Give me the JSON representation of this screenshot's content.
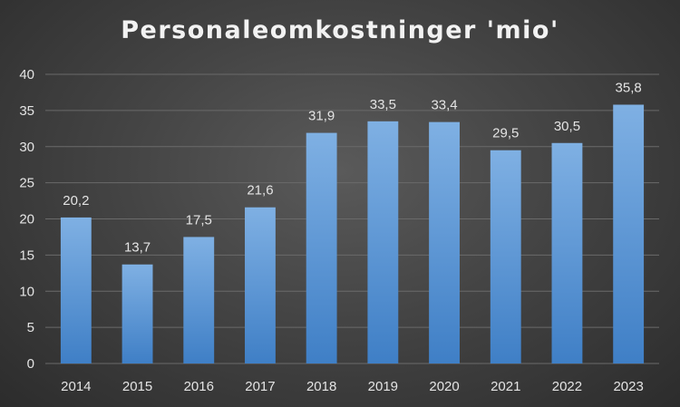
{
  "chart_data": {
    "type": "bar",
    "title": "Personaleomkostninger 'mio'",
    "categories": [
      "2014",
      "2015",
      "2016",
      "2017",
      "2018",
      "2019",
      "2020",
      "2021",
      "2022",
      "2023"
    ],
    "values": [
      20.2,
      13.7,
      17.5,
      21.6,
      31.9,
      33.5,
      33.4,
      29.5,
      30.5,
      35.8
    ],
    "data_labels": [
      "20,2",
      "13,7",
      "17,5",
      "21,6",
      "31,9",
      "33,5",
      "33,4",
      "29,5",
      "30,5",
      "35,8"
    ],
    "ylim": [
      0,
      40
    ],
    "y_ticks": [
      0,
      5,
      10,
      15,
      20,
      25,
      30,
      35,
      40
    ],
    "xlabel": "",
    "ylabel": "",
    "grid": true,
    "legend": false,
    "colors": {
      "bar_top": "#7fb0e3",
      "bar_bottom": "#3f7fc6",
      "gridline": "#6a6a6a",
      "text": "#e4e4e4"
    }
  }
}
